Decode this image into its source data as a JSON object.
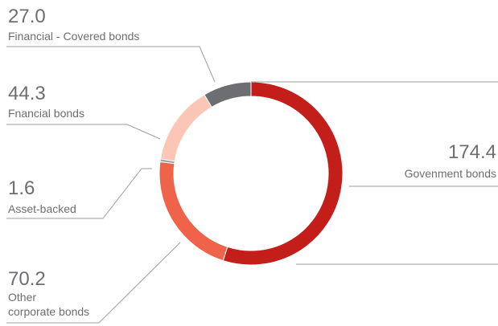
{
  "chart_data": {
    "type": "pie",
    "donut": true,
    "slices": [
      {
        "value": 174.4,
        "value_label": "174.4",
        "label_lines": [
          "Govenment bonds"
        ],
        "color": "#c41e1a"
      },
      {
        "value": 70.2,
        "value_label": "70.2",
        "label_lines": [
          "Other",
          "corporate bonds"
        ],
        "color": "#f0634b"
      },
      {
        "value": 1.6,
        "value_label": "1.6",
        "label_lines": [
          "Asset-backed"
        ],
        "color": "#a3a3a5"
      },
      {
        "value": 44.3,
        "value_label": "44.3",
        "label_lines": [
          "Fnancial bonds"
        ],
        "color": "#fbc6b6"
      },
      {
        "value": 27.0,
        "value_label": "27.0",
        "label_lines": [
          "Financial - Covered bonds"
        ],
        "color": "#6d6e71"
      }
    ],
    "start": "12 o'clock",
    "direction": "clockwise",
    "legend": "none",
    "label_color": "#6d6e71",
    "leader_color": "#9c9ea1"
  }
}
